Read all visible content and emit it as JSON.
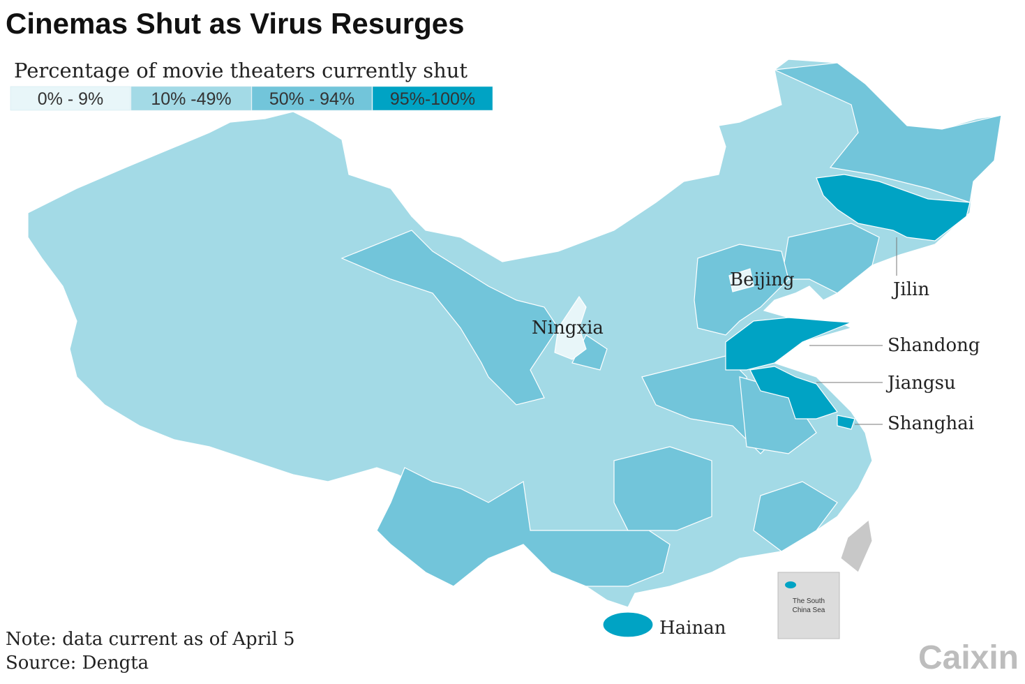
{
  "title": "Cinemas Shut as Virus Resurges",
  "legend": {
    "title": "Percentage of movie theaters currently shut",
    "items": [
      {
        "label": "0% - 9%",
        "color": "#e8f6f9"
      },
      {
        "label": "10% -49%",
        "color": "#a3dae6"
      },
      {
        "label": "50% - 94%",
        "color": "#72c5da"
      },
      {
        "label": "95%-100%",
        "color": "#00a3c4"
      }
    ]
  },
  "labels": [
    "Beijing",
    "Ningxia",
    "Jilin",
    "Shandong",
    "Jiangsu",
    "Shanghai",
    "Hainan"
  ],
  "inset": "The South China Sea",
  "note": "Note: data current as of April 5",
  "source": "Source: Dengta",
  "logo": "Caixin"
}
